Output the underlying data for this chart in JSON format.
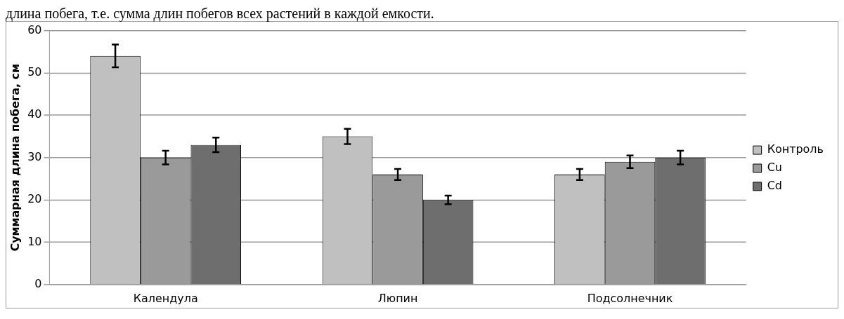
{
  "chart_data": {
    "type": "bar",
    "ylabel": "Суммарная длина побега, см",
    "annotations": [
      "длина побега, т.е. сумма длин побегов всех растений в каждой емкости."
    ],
    "categories": [
      "Календула",
      "Люпин",
      "Подсолнечник"
    ],
    "series": [
      {
        "name": "Контроль",
        "color": "#c0c0c0",
        "values": [
          54,
          35,
          26
        ],
        "errors": [
          2.7,
          1.8,
          1.3
        ]
      },
      {
        "name": "Cu",
        "color": "#9a9a9a",
        "values": [
          30,
          26,
          29
        ],
        "errors": [
          1.6,
          1.3,
          1.5
        ]
      },
      {
        "name": "Cd",
        "color": "#6e6e6e",
        "values": [
          33,
          20,
          30
        ],
        "errors": [
          1.7,
          1,
          1.6
        ]
      }
    ],
    "ylim": [
      0,
      60
    ],
    "yticks": [
      0,
      10,
      20,
      30,
      40,
      50,
      60
    ],
    "grid": "y",
    "legend": "right"
  }
}
